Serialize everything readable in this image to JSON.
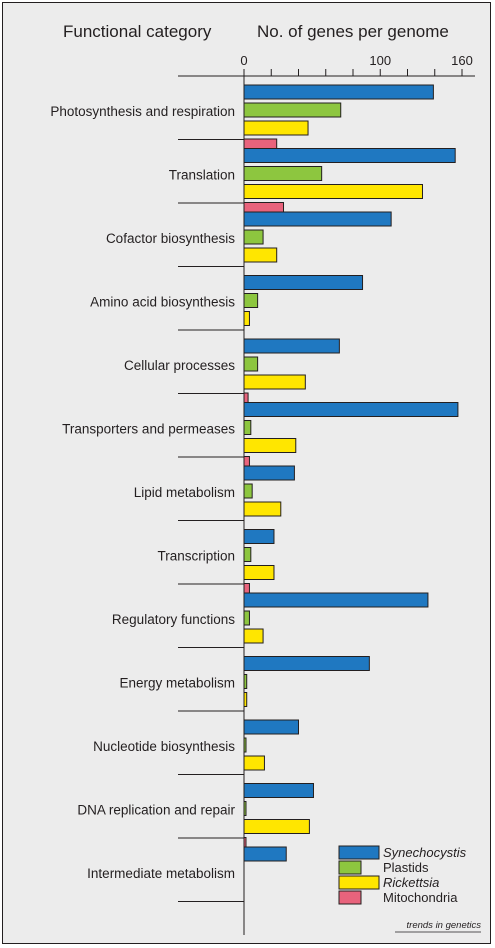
{
  "chart_data": {
    "type": "bar",
    "orientation": "horizontal",
    "header_left": "Functional category",
    "header_right": "No. of genes per genome",
    "xlim": [
      0,
      160
    ],
    "xticks": [
      0,
      100,
      160
    ],
    "grid": false,
    "legend_position": "bottom-right",
    "credit": "trends in genetics",
    "categories": [
      "Photosynthesis and respiration",
      "Translation",
      "Cofactor biosynthesis",
      "Amino acid biosynthesis",
      "Cellular processes",
      "Transporters and permeases",
      "Lipid metabolism",
      "Transcription",
      "Regulatory functions",
      "Energy metabolism",
      "Nucleotide biosynthesis",
      "DNA replication and repair",
      "Intermediate metabolism"
    ],
    "series": [
      {
        "name": "Synechocystis",
        "italic": true,
        "color": "#1f78c1",
        "values": [
          139,
          155,
          108,
          87,
          70,
          157,
          37,
          22,
          135,
          92,
          40,
          51,
          31
        ]
      },
      {
        "name": "Plastids",
        "italic": false,
        "color": "#8dc63f",
        "values": [
          71,
          57,
          14,
          10,
          10,
          5,
          6,
          5,
          4,
          2,
          1,
          1,
          0
        ]
      },
      {
        "name": "Rickettsia",
        "italic": true,
        "color": "#ffe600",
        "values": [
          47,
          131,
          24,
          4,
          45,
          38,
          27,
          22,
          14,
          2,
          15,
          48,
          0
        ]
      },
      {
        "name": "Mitochondria",
        "italic": false,
        "color": "#e8637c",
        "values": [
          24,
          29,
          0,
          0,
          3,
          4,
          0,
          4,
          0,
          0,
          0,
          1,
          0
        ]
      }
    ]
  }
}
